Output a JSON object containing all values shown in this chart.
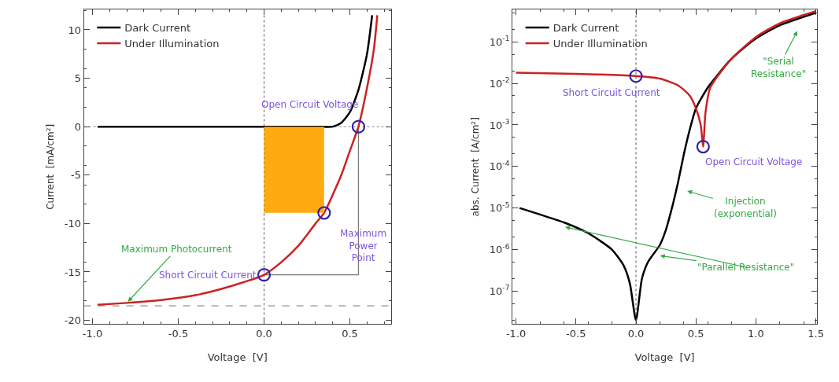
{
  "chart_data": [
    {
      "type": "line",
      "xlabel": "Voltage  [V]",
      "ylabel": "Current  [mA/cm²]",
      "xlim": [
        -1.05,
        0.74
      ],
      "ylim": [
        -20.4,
        12.1
      ],
      "xticks": [
        {
          "value": -1,
          "label": "-1.0"
        },
        {
          "value": -0.5,
          "label": "-0.5"
        },
        {
          "value": 0,
          "label": "0.0"
        },
        {
          "value": 0.5,
          "label": "0.5"
        }
      ],
      "yticks": [
        -20,
        -15,
        -10,
        -5,
        0,
        5,
        10
      ],
      "grid": false,
      "legend": "top left",
      "series": [
        {
          "name": "Dark Current",
          "color": "#000000",
          "x": [
            -0.97,
            -0.5,
            0,
            0.3,
            0.4,
            0.45,
            0.5,
            0.55,
            0.6,
            0.63
          ],
          "values": [
            0,
            0,
            0,
            0,
            0,
            0.4,
            1.5,
            3.8,
            7.5,
            11.5
          ]
        },
        {
          "name": "Under Illumination",
          "color": "#cc2222",
          "x": [
            -0.97,
            -0.8,
            -0.6,
            -0.4,
            -0.2,
            0,
            0.1,
            0.2,
            0.3,
            0.35,
            0.45,
            0.5,
            0.55,
            0.6,
            0.64,
            0.66
          ],
          "values": [
            -18.4,
            -18.2,
            -17.9,
            -17.4,
            -16.5,
            -15.3,
            -14.0,
            -12.3,
            -10.0,
            -8.9,
            -5.0,
            -2.5,
            0,
            4,
            8,
            11.5
          ]
        },
        {
          "type": "area",
          "color": "#ffaa11",
          "x": [
            0,
            0.35
          ],
          "values": [
            -8.9,
            -8.9
          ]
        },
        {
          "type": "scatter",
          "marker": "circle",
          "color": "#3322aa",
          "x": [
            0,
            0.35,
            0.55
          ],
          "values": [
            -15.3,
            -8.9,
            0
          ]
        }
      ],
      "ref_lines": [
        {
          "axis": "x",
          "value": 0,
          "color": "#555555",
          "line_style": "dotted"
        },
        {
          "axis": "y",
          "value": 0,
          "color": "#888888",
          "line_style": "dotted"
        },
        {
          "axis": "y",
          "value": -18.5,
          "color": "#558855",
          "line_style": "dashed"
        }
      ],
      "annotations": [
        {
          "text": "Open Circuit Voltage",
          "x": 0.55,
          "y": 0
        },
        {
          "text": "Maximum\nPower\nPoint",
          "x": 0.35,
          "y": -8.9
        },
        {
          "text": "Short Circuit Current",
          "x": 0,
          "y": -15.3
        },
        {
          "text": "Maximum Photocurrent",
          "x": -0.8,
          "y": -18.2
        }
      ]
    },
    {
      "type": "line",
      "xlabel": "Voltage  [V]",
      "ylabel": "abs. Current  [A/cm²]",
      "log": "y",
      "xlim": [
        -1.03,
        1.51
      ],
      "ylim": [
        1.6e-08,
        0.6
      ],
      "xticks": [
        {
          "value": -1,
          "label": "-1.0"
        },
        {
          "value": -0.5,
          "label": "-0.5"
        },
        {
          "value": 0,
          "label": "0.0"
        },
        {
          "value": 0.5,
          "label": "0.5"
        },
        {
          "value": 1,
          "label": "1.0"
        },
        {
          "value": 1.5,
          "label": "1.5"
        }
      ],
      "yticks": [
        {
          "value": 1e-07,
          "label": "10$^{-7}$"
        },
        {
          "value": 1e-06,
          "label": "10$^{-6}$"
        },
        {
          "value": 1e-05,
          "label": "10$^{-5}$"
        },
        {
          "value": 0.0001,
          "label": "10$^{-4}$"
        },
        {
          "value": 0.001,
          "label": "10$^{-3}$"
        },
        {
          "value": 0.01,
          "label": "10$^{-2}$"
        },
        {
          "value": 0.1,
          "label": "10$^{-1}$"
        }
      ],
      "grid": false,
      "legend": "top left",
      "series": [
        {
          "name": "Dark Current",
          "color": "#000000",
          "x": [
            -0.97,
            -0.8,
            -0.6,
            -0.4,
            -0.2,
            -0.1,
            -0.05,
            0,
            0.05,
            0.1,
            0.2,
            0.25,
            0.3,
            0.35,
            0.4,
            0.45,
            0.5,
            0.6,
            0.8,
            1.0,
            1.2,
            1.5
          ],
          "values": [
            1e-05,
            7e-06,
            4.5e-06,
            2.5e-06,
            1e-06,
            4e-07,
            1.5e-07,
            2e-08,
            2e-07,
            5e-07,
            1.3e-06,
            3e-06,
            1e-05,
            4e-05,
            0.0002,
            0.0008,
            0.0025,
            0.008,
            0.04,
            0.12,
            0.25,
            0.5
          ]
        },
        {
          "name": "Under Illumination",
          "color": "#cc2222",
          "x": [
            -1.0,
            -0.5,
            0,
            0.2,
            0.35,
            0.45,
            0.5,
            0.54,
            0.56,
            0.58,
            0.62,
            0.8,
            1.0,
            1.2,
            1.5
          ],
          "values": [
            0.018,
            0.017,
            0.015,
            0.013,
            0.009,
            0.005,
            0.0025,
            0.001,
            0.0003,
            0.002,
            0.008,
            0.04,
            0.13,
            0.28,
            0.55
          ]
        },
        {
          "type": "scatter",
          "marker": "circle",
          "color": "#3322aa",
          "x": [
            0,
            0.56
          ],
          "values": [
            0.015,
            0.0003
          ]
        }
      ],
      "ref_lines": [
        {
          "axis": "x",
          "value": 0,
          "color": "#555555",
          "line_style": "dotted"
        }
      ],
      "annotations": [
        {
          "text": "Short Circuit Current",
          "x": 0,
          "y": 0.015
        },
        {
          "text": "Open Circuit Voltage",
          "x": 0.56,
          "y": 0.0003
        },
        "\"Serial\nResistance\"",
        "Injection\n(exponential)",
        "\"Parallel Resistance\""
      ]
    }
  ]
}
